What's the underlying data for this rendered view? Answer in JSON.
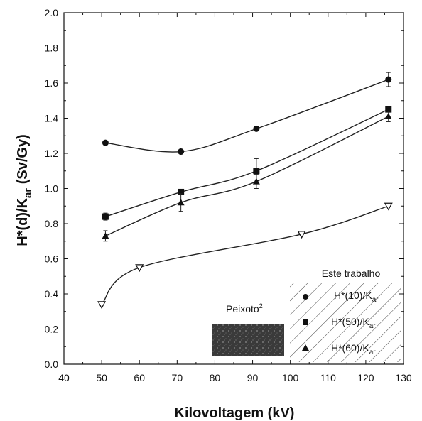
{
  "chart_data": {
    "type": "line",
    "title": "",
    "xlabel": "Kilovoltagem (kV)",
    "ylabel_main": "H*(d)/K",
    "ylabel_sub": "ar",
    "ylabel_unit": " (Sv/Gy)",
    "xlim": [
      40,
      130
    ],
    "ylim": [
      0.0,
      2.0
    ],
    "x_ticks": [
      "40",
      "50",
      "60",
      "70",
      "80",
      "90",
      "100",
      "110",
      "120",
      "130"
    ],
    "y_ticks": [
      "0.0",
      "0.2",
      "0.4",
      "0.6",
      "0.8",
      "1.0",
      "1.2",
      "1.4",
      "1.6",
      "1.8",
      "2.0"
    ],
    "grid": false,
    "series": [
      {
        "name_main": "H*(10)/K",
        "name_sub": "ar",
        "marker": "circle",
        "group": "Este trabalho",
        "x": [
          51,
          71,
          91,
          126
        ],
        "y": [
          1.26,
          1.21,
          1.34,
          1.62
        ],
        "err": [
          0.01,
          0.02,
          0.01,
          0.04
        ]
      },
      {
        "name_main": "H*(50)/K",
        "name_sub": "ar",
        "marker": "square",
        "group": "Este trabalho",
        "x": [
          51,
          71,
          91,
          126
        ],
        "y": [
          0.84,
          0.98,
          1.1,
          1.45
        ],
        "err": [
          0.02,
          0.01,
          0.07,
          0.01
        ]
      },
      {
        "name_main": "H*(60)/K",
        "name_sub": "ar",
        "marker": "triangle",
        "group": "Este trabalho",
        "x": [
          51,
          71,
          91,
          126
        ],
        "y": [
          0.73,
          0.92,
          1.04,
          1.41
        ],
        "err": [
          0.03,
          0.05,
          0.04,
          0.03
        ]
      },
      {
        "name_main": "",
        "name_sub": "",
        "marker": "triangle-down-open",
        "group": "Peixoto",
        "x": [
          50,
          60,
          103,
          126
        ],
        "y": [
          0.34,
          0.55,
          0.74,
          0.9
        ],
        "err": [
          0,
          0,
          0,
          0
        ]
      }
    ],
    "legend": {
      "placement": "bottom-right",
      "group_title": "Este trabalho",
      "peixoto_label": "Peixoto",
      "peixoto_sup": "2"
    }
  }
}
